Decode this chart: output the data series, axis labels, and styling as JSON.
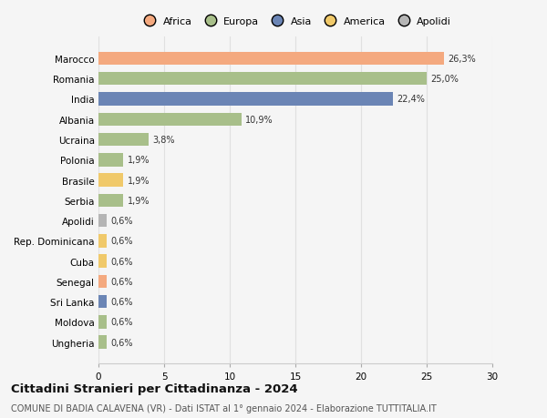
{
  "countries": [
    "Marocco",
    "Romania",
    "India",
    "Albania",
    "Ucraina",
    "Polonia",
    "Brasile",
    "Serbia",
    "Apolidi",
    "Rep. Dominicana",
    "Cuba",
    "Senegal",
    "Sri Lanka",
    "Moldova",
    "Ungheria"
  ],
  "values": [
    26.3,
    25.0,
    22.4,
    10.9,
    3.8,
    1.9,
    1.9,
    1.9,
    0.6,
    0.6,
    0.6,
    0.6,
    0.6,
    0.6,
    0.6
  ],
  "labels": [
    "26,3%",
    "25,0%",
    "22,4%",
    "10,9%",
    "3,8%",
    "1,9%",
    "1,9%",
    "1,9%",
    "0,6%",
    "0,6%",
    "0,6%",
    "0,6%",
    "0,6%",
    "0,6%",
    "0,6%"
  ],
  "colors": [
    "#F4A97F",
    "#A8BF8A",
    "#6B85B5",
    "#A8BF8A",
    "#A8BF8A",
    "#A8BF8A",
    "#F0C96A",
    "#A8BF8A",
    "#B5B5B5",
    "#F0C96A",
    "#F0C96A",
    "#F4A97F",
    "#6B85B5",
    "#A8BF8A",
    "#A8BF8A"
  ],
  "legend_labels": [
    "Africa",
    "Europa",
    "Asia",
    "America",
    "Apolidi"
  ],
  "legend_colors": [
    "#F4A97F",
    "#A8BF8A",
    "#6B85B5",
    "#F0C96A",
    "#B5B5B5"
  ],
  "title": "Cittadini Stranieri per Cittadinanza - 2024",
  "subtitle": "COMUNE DI BADIA CALAVENA (VR) - Dati ISTAT al 1° gennaio 2024 - Elaborazione TUTTITALIA.IT",
  "xlim": [
    0,
    30
  ],
  "xticks": [
    0,
    5,
    10,
    15,
    20,
    25,
    30
  ],
  "background_color": "#f5f5f5",
  "grid_color": "#e0e0e0",
  "bar_height": 0.65
}
